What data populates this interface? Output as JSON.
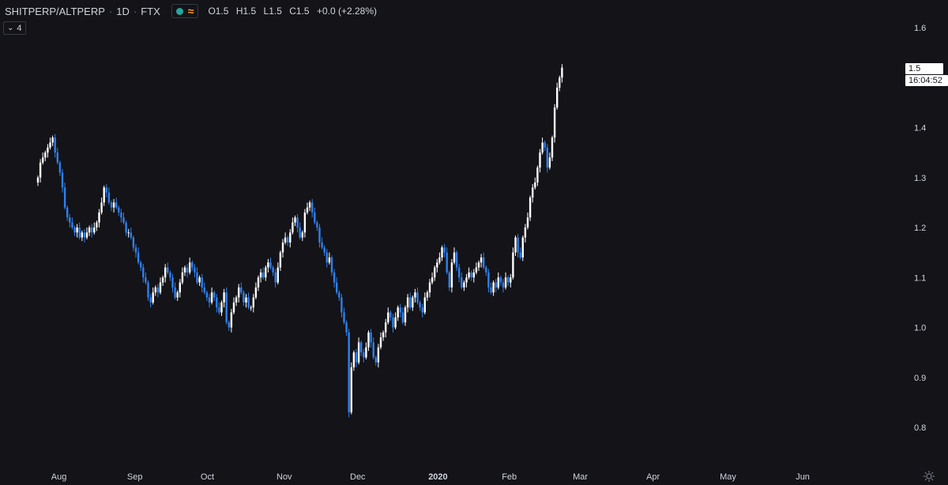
{
  "header": {
    "symbol": "SHITPERP/ALTPERP",
    "interval": "1D",
    "exchange": "FTX",
    "sep": "·",
    "ohlc": {
      "open": "O1.5",
      "high": "H1.5",
      "low": "L1.5",
      "close": "C1.5",
      "change": "+0.0 (+2.28%)"
    }
  },
  "indicator_toggle": {
    "label": "4"
  },
  "last_price": {
    "price": "1.5",
    "countdown": "16:04:52"
  },
  "colors": {
    "background": "#131318",
    "up": "#ffffff",
    "down": "#2f80ed",
    "text": "#d1d4dc"
  },
  "chart_data": {
    "type": "candlestick",
    "ylim": [
      0.77,
      1.635
    ],
    "y_ticks": [
      1.6,
      1.5,
      1.4,
      1.3,
      1.2,
      1.1,
      1.0,
      0.9,
      0.8
    ],
    "y_tick_labels": [
      "1.6",
      "1.5",
      "1.4",
      "1.3",
      "1.2",
      "1.1",
      "1.0",
      "0.9",
      "0.8"
    ],
    "x_labels": [
      "Aug",
      "Sep",
      "Oct",
      "Nov",
      "Dec",
      "2020",
      "Feb",
      "Mar",
      "Apr",
      "May",
      "Jun"
    ],
    "x_label_index": [
      8,
      39,
      69,
      100,
      130,
      162,
      192,
      221,
      251,
      281,
      312
    ],
    "closes": [
      1.3,
      1.33,
      1.34,
      1.35,
      1.36,
      1.37,
      1.38,
      1.35,
      1.33,
      1.31,
      1.28,
      1.24,
      1.22,
      1.21,
      1.2,
      1.19,
      1.2,
      1.18,
      1.19,
      1.18,
      1.19,
      1.2,
      1.19,
      1.2,
      1.21,
      1.23,
      1.25,
      1.28,
      1.27,
      1.25,
      1.24,
      1.25,
      1.24,
      1.23,
      1.22,
      1.21,
      1.19,
      1.19,
      1.18,
      1.16,
      1.15,
      1.13,
      1.12,
      1.1,
      1.09,
      1.06,
      1.05,
      1.07,
      1.08,
      1.07,
      1.09,
      1.1,
      1.12,
      1.11,
      1.1,
      1.08,
      1.06,
      1.07,
      1.09,
      1.11,
      1.12,
      1.11,
      1.13,
      1.12,
      1.11,
      1.09,
      1.1,
      1.08,
      1.07,
      1.06,
      1.05,
      1.07,
      1.06,
      1.04,
      1.03,
      1.05,
      1.07,
      1.01,
      1.0,
      1.03,
      1.05,
      1.06,
      1.08,
      1.07,
      1.05,
      1.06,
      1.04,
      1.04,
      1.06,
      1.08,
      1.1,
      1.11,
      1.1,
      1.12,
      1.13,
      1.12,
      1.11,
      1.09,
      1.12,
      1.15,
      1.17,
      1.18,
      1.17,
      1.19,
      1.21,
      1.22,
      1.2,
      1.18,
      1.19,
      1.23,
      1.24,
      1.25,
      1.23,
      1.21,
      1.2,
      1.17,
      1.16,
      1.15,
      1.13,
      1.14,
      1.11,
      1.09,
      1.07,
      1.06,
      1.03,
      1.01,
      0.99,
      0.83,
      0.92,
      0.95,
      0.93,
      0.97,
      0.95,
      0.94,
      0.96,
      0.99,
      0.97,
      0.94,
      0.93,
      0.96,
      0.98,
      0.99,
      1.01,
      1.03,
      1.02,
      1.0,
      1.02,
      1.04,
      1.03,
      1.01,
      1.04,
      1.06,
      1.04,
      1.06,
      1.07,
      1.05,
      1.04,
      1.03,
      1.06,
      1.07,
      1.09,
      1.1,
      1.12,
      1.13,
      1.14,
      1.16,
      1.15,
      1.11,
      1.08,
      1.13,
      1.15,
      1.12,
      1.1,
      1.08,
      1.09,
      1.1,
      1.11,
      1.1,
      1.11,
      1.12,
      1.13,
      1.14,
      1.12,
      1.11,
      1.08,
      1.07,
      1.09,
      1.08,
      1.1,
      1.09,
      1.08,
      1.1,
      1.09,
      1.1,
      1.15,
      1.18,
      1.15,
      1.14,
      1.18,
      1.2,
      1.22,
      1.26,
      1.28,
      1.29,
      1.32,
      1.35,
      1.37,
      1.36,
      1.32,
      1.34,
      1.38,
      1.44,
      1.48,
      1.5,
      1.52
    ],
    "notes": "daily candles; white = up, blue = down"
  }
}
